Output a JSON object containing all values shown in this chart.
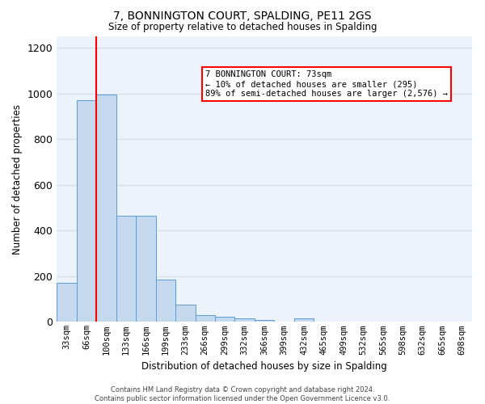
{
  "title": "7, BONNINGTON COURT, SPALDING, PE11 2GS",
  "subtitle": "Size of property relative to detached houses in Spalding",
  "xlabel": "Distribution of detached houses by size in Spalding",
  "ylabel": "Number of detached properties",
  "categories": [
    "33sqm",
    "66sqm",
    "100sqm",
    "133sqm",
    "166sqm",
    "199sqm",
    "233sqm",
    "266sqm",
    "299sqm",
    "332sqm",
    "366sqm",
    "399sqm",
    "432sqm",
    "465sqm",
    "499sqm",
    "532sqm",
    "565sqm",
    "598sqm",
    "632sqm",
    "665sqm",
    "698sqm"
  ],
  "values": [
    170,
    970,
    995,
    465,
    465,
    185,
    75,
    30,
    22,
    17,
    10,
    0,
    17,
    0,
    0,
    0,
    0,
    0,
    0,
    0,
    0
  ],
  "bar_color": "#c5d9ee",
  "bar_edge_color": "#5b9bd5",
  "grid_color": "#d0dce8",
  "bg_color": "#edf3fa",
  "red_line_x": 1.5,
  "annotation_text": "7 BONNINGTON COURT: 73sqm\n← 10% of detached houses are smaller (295)\n89% of semi-detached houses are larger (2,576) →",
  "footnote": "Contains HM Land Registry data © Crown copyright and database right 2024.\nContains public sector information licensed under the Open Government Licence v3.0.",
  "ylim": [
    0,
    1250
  ],
  "yticks": [
    0,
    200,
    400,
    600,
    800,
    1000,
    1200
  ]
}
